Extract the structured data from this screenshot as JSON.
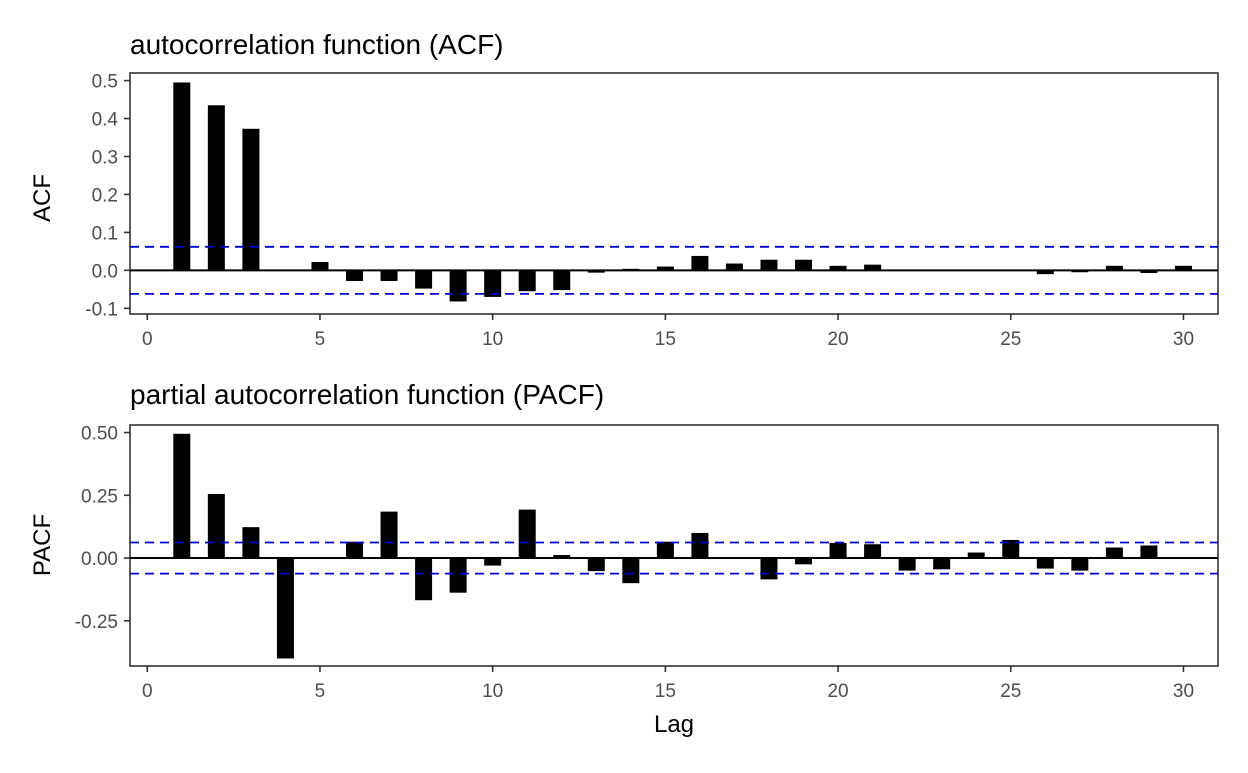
{
  "colors": {
    "bar": "#000000",
    "zero_line": "#000000",
    "confidence_line": "#0000cc",
    "panel_border": "#333333",
    "tick_text": "#4d4d4d"
  },
  "chart_data": [
    {
      "type": "bar",
      "title": "autocorrelation function (ACF)",
      "xlabel": "",
      "ylabel": "ACF",
      "xlim": [
        -0.5,
        31
      ],
      "ylim": [
        -0.115,
        0.52
      ],
      "x_ticks": [
        0,
        5,
        10,
        15,
        20,
        25,
        30
      ],
      "y_ticks": [
        -0.1,
        0.0,
        0.1,
        0.2,
        0.3,
        0.4,
        0.5
      ],
      "y_tick_labels": [
        "-0.1",
        "0.0",
        "0.1",
        "0.2",
        "0.3",
        "0.4",
        "0.5"
      ],
      "confidence_bounds": [
        0.062,
        -0.062
      ],
      "grid": false,
      "x": [
        1,
        2,
        3,
        4,
        5,
        6,
        7,
        8,
        9,
        10,
        11,
        12,
        13,
        14,
        15,
        16,
        17,
        18,
        19,
        20,
        21,
        22,
        23,
        24,
        25,
        26,
        27,
        28,
        29,
        30
      ],
      "values": [
        0.495,
        0.435,
        0.373,
        0.0,
        0.022,
        -0.028,
        -0.028,
        -0.048,
        -0.082,
        -0.07,
        -0.055,
        -0.052,
        -0.006,
        0.004,
        0.01,
        0.038,
        0.018,
        0.028,
        0.028,
        0.012,
        0.015,
        0.0,
        0.0,
        0.0,
        0.0,
        -0.01,
        -0.005,
        0.012,
        -0.007,
        0.012
      ]
    },
    {
      "type": "bar",
      "title": "partial autocorrelation function (PACF)",
      "xlabel": "Lag",
      "ylabel": "PACF",
      "xlim": [
        -0.5,
        31
      ],
      "ylim": [
        -0.43,
        0.53
      ],
      "x_ticks": [
        0,
        5,
        10,
        15,
        20,
        25,
        30
      ],
      "y_ticks": [
        -0.25,
        0.0,
        0.25,
        0.5
      ],
      "y_tick_labels": [
        "-0.25",
        "0.00",
        "0.25",
        "0.50"
      ],
      "confidence_bounds": [
        0.062,
        -0.062
      ],
      "grid": false,
      "x": [
        1,
        2,
        3,
        4,
        5,
        6,
        7,
        8,
        9,
        10,
        11,
        12,
        13,
        14,
        15,
        16,
        17,
        18,
        19,
        20,
        21,
        22,
        23,
        24,
        25,
        26,
        27,
        28,
        29
      ],
      "values": [
        0.495,
        0.255,
        0.123,
        -0.4,
        0.0,
        0.065,
        0.185,
        -0.168,
        -0.138,
        -0.03,
        0.193,
        0.012,
        -0.052,
        -0.1,
        0.065,
        0.1,
        0.0,
        -0.085,
        -0.025,
        0.06,
        0.055,
        -0.05,
        -0.045,
        0.022,
        0.072,
        -0.042,
        -0.05,
        0.042,
        0.05
      ]
    }
  ]
}
